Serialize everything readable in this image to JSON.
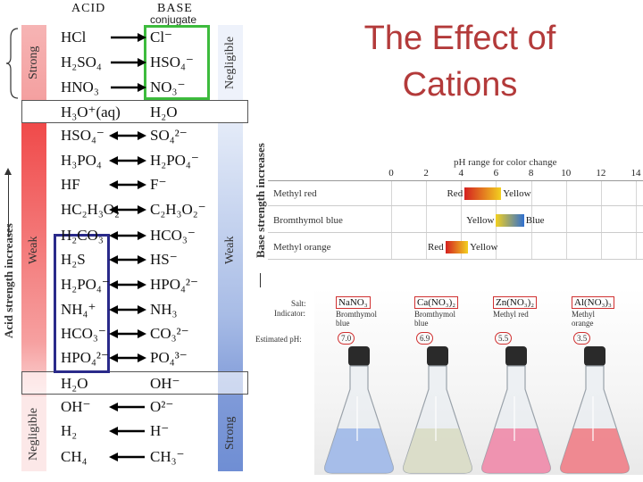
{
  "title": {
    "line1": "The Effect of",
    "line2": "Cations"
  },
  "table": {
    "acid_header": "ACID",
    "base_header": "BASE",
    "conj_annotation": "conjugate",
    "left_axis_label": "Acid strength increases",
    "right_axis_label": "Base strength increases",
    "band_left": {
      "strong": "Strong",
      "weak": "Weak",
      "negligible": "Negligible"
    },
    "band_right": {
      "negligible": "Negligible",
      "weak": "Weak",
      "strong": "Strong"
    },
    "rows": [
      {
        "acid": "HCl",
        "base": "Cl⁻"
      },
      {
        "acid": "H₂SO₄",
        "base": "HSO₄⁻"
      },
      {
        "acid": "HNO₃",
        "base": "NO₃⁻"
      },
      {
        "acid": "H₃O⁺(aq)",
        "base": "H₂O"
      },
      {
        "acid": "HSO₄⁻",
        "base": "SO₄²⁻"
      },
      {
        "acid": "H₃PO₄",
        "base": "H₂PO₄⁻"
      },
      {
        "acid": "HF",
        "base": "F⁻"
      },
      {
        "acid": "HC₂H₃O₂",
        "base": "C₂H₃O₂⁻"
      },
      {
        "acid": "H₂CO₃",
        "base": "HCO₃⁻"
      },
      {
        "acid": "H₂S",
        "base": "HS⁻"
      },
      {
        "acid": "H₂PO₄⁻",
        "base": "HPO₄²⁻"
      },
      {
        "acid": "NH₄⁺",
        "base": "NH₃"
      },
      {
        "acid": "HCO₃⁻",
        "base": "CO₃²⁻"
      },
      {
        "acid": "HPO₄²⁻",
        "base": "PO₄³⁻"
      },
      {
        "acid": "H₂O",
        "base": "OH⁻"
      },
      {
        "acid": "OH⁻",
        "base": "O²⁻"
      },
      {
        "acid": "H₂",
        "base": "H⁻"
      },
      {
        "acid": "CH₄",
        "base": "CH₃⁻"
      }
    ]
  },
  "ph_chart": {
    "title": "pH range for color change",
    "ticks": [
      "0",
      "2",
      "4",
      "6",
      "8",
      "10",
      "12",
      "14"
    ],
    "indicators": [
      {
        "name": "Methyl red",
        "low_color_name": "Red",
        "high_color_name": "Yellow",
        "range": [
          4.2,
          6.3
        ],
        "low_color": "#d42020",
        "high_color": "#f2d020"
      },
      {
        "name": "Bromthymol blue",
        "low_color_name": "Yellow",
        "high_color_name": "Blue",
        "range": [
          6.0,
          7.6
        ],
        "low_color": "#f2d020",
        "high_color": "#3070d0"
      },
      {
        "name": "Methyl orange",
        "low_color_name": "Red",
        "high_color_name": "Yellow",
        "range": [
          3.1,
          4.4
        ],
        "low_color": "#d42020",
        "high_color": "#f2d020"
      }
    ]
  },
  "photo": {
    "salt_label": "Salt:",
    "indicator_label": "Indicator:",
    "ph_label": "Estimated pH:",
    "flasks": [
      {
        "salt": "NaNO₃",
        "indicator": "Bromthymol blue",
        "ph": "7.0",
        "liquid": "#9fb8e8"
      },
      {
        "salt": "Ca(NO₃)₂",
        "indicator": "Bromthymol blue",
        "ph": "6.9",
        "liquid": "#d9dcc4"
      },
      {
        "salt": "Zn(NO₃)₂",
        "indicator": "Methyl red",
        "ph": "5.5",
        "liquid": "#f08aa8"
      },
      {
        "salt": "Al(NO₃)₃",
        "indicator": "Methyl orange",
        "ph": "3.5",
        "liquid": "#ef7e86"
      }
    ]
  }
}
